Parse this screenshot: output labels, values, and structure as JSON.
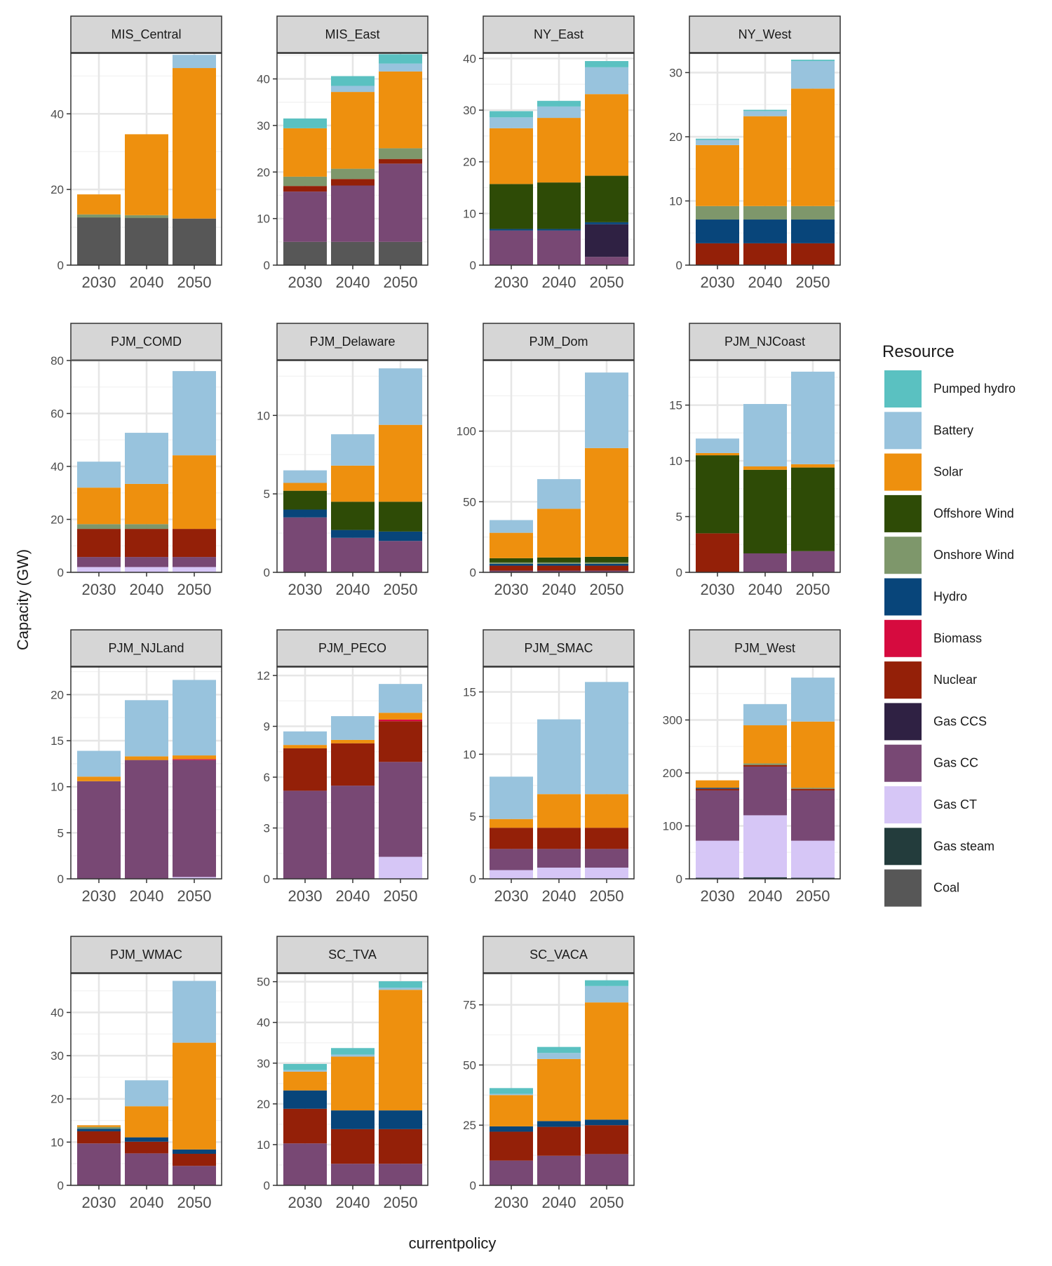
{
  "chart_data": {
    "type": "bar",
    "stacked": true,
    "xlabel": "currentpolicy",
    "ylabel": "Capacity (GW)",
    "categories": [
      "2030",
      "2040",
      "2050"
    ],
    "legend": {
      "title": "Resource",
      "position": "right",
      "items": [
        {
          "name": "Pumped hydro",
          "color": "#5ac1c1"
        },
        {
          "name": "Battery",
          "color": "#98c3dd"
        },
        {
          "name": "Solar",
          "color": "#ee900e"
        },
        {
          "name": "Offshore Wind",
          "color": "#2e4b06"
        },
        {
          "name": "Onshore Wind",
          "color": "#7e976b"
        },
        {
          "name": "Hydro",
          "color": "#08457a"
        },
        {
          "name": "Biomass",
          "color": "#d60b3f"
        },
        {
          "name": "Nuclear",
          "color": "#942008"
        },
        {
          "name": "Gas CCS",
          "color": "#2f2143"
        },
        {
          "name": "Gas CC",
          "color": "#784874"
        },
        {
          "name": "Gas CT",
          "color": "#d6c6f6"
        },
        {
          "name": "Gas steam",
          "color": "#233c3c"
        },
        {
          "name": "Coal",
          "color": "#575757"
        }
      ]
    },
    "grid": true,
    "panels": [
      {
        "title": "MIS_Central",
        "ylim": [
          0,
          56
        ],
        "yticks": [
          0,
          20,
          40
        ],
        "bars": [
          {
            "Coal": 12.6,
            "Onshore Wind": 0.8,
            "Solar": 5.3
          },
          {
            "Coal": 12.5,
            "Onshore Wind": 0.7,
            "Solar": 21.4
          },
          {
            "Coal": 12.3,
            "Solar": 39.8,
            "Battery": 3.5
          }
        ]
      },
      {
        "title": "MIS_East",
        "ylim": [
          0,
          45.5
        ],
        "yticks": [
          0,
          10,
          20,
          30,
          40
        ],
        "bars": [
          {
            "Coal": 5,
            "Gas CC": 10.8,
            "Nuclear": 1.2,
            "Onshore Wind": 2,
            "Solar": 10.4,
            "Pumped hydro": 2.1
          },
          {
            "Coal": 5,
            "Gas CC": 12.1,
            "Nuclear": 1.4,
            "Onshore Wind": 2.2,
            "Solar": 16.5,
            "Battery": 1.3,
            "Pumped hydro": 2.1
          },
          {
            "Coal": 5,
            "Gas CC": 16.8,
            "Nuclear": 1,
            "Onshore Wind": 2.3,
            "Solar": 16.5,
            "Battery": 1.7,
            "Pumped hydro": 2
          }
        ]
      },
      {
        "title": "NY_East",
        "ylim": [
          0,
          41
        ],
        "yticks": [
          0,
          10,
          20,
          30,
          40
        ],
        "bars": [
          {
            "Gas CC": 6.7,
            "Hydro": 0.3,
            "Offshore Wind": 8.7,
            "Solar": 10.8,
            "Battery": 2.1,
            "Pumped hydro": 1.2
          },
          {
            "Gas CC": 6.7,
            "Hydro": 0.3,
            "Offshore Wind": 9,
            "Solar": 12.5,
            "Battery": 2.2,
            "Pumped hydro": 1.1
          },
          {
            "Gas CC": 1.6,
            "Gas CCS": 6.3,
            "Hydro": 0.4,
            "Offshore Wind": 9,
            "Solar": 15.8,
            "Battery": 5.2,
            "Pumped hydro": 1.2
          }
        ]
      },
      {
        "title": "NY_West",
        "ylim": [
          0,
          33
        ],
        "yticks": [
          0,
          10,
          20,
          30
        ],
        "bars": [
          {
            "Nuclear": 3.4,
            "Hydro": 3.7,
            "Onshore Wind": 2.1,
            "Solar": 9.5,
            "Battery": 0.8,
            "Pumped hydro": 0.2
          },
          {
            "Nuclear": 3.4,
            "Hydro": 3.7,
            "Onshore Wind": 2.1,
            "Solar": 14,
            "Battery": 0.8,
            "Pumped hydro": 0.2
          },
          {
            "Nuclear": 3.4,
            "Hydro": 3.7,
            "Onshore Wind": 2.1,
            "Solar": 18.3,
            "Battery": 4.3,
            "Pumped hydro": 0.2
          }
        ]
      },
      {
        "title": "PJM_COMD",
        "ylim": [
          0,
          80
        ],
        "yticks": [
          0,
          20,
          40,
          60,
          80
        ],
        "bars": [
          {
            "Gas CT": 2,
            "Gas CC": 3.8,
            "Nuclear": 10.6,
            "Onshore Wind": 1.8,
            "Solar": 13.8,
            "Battery": 9.8
          },
          {
            "Gas CT": 2,
            "Gas CC": 3.8,
            "Nuclear": 10.6,
            "Onshore Wind": 1.8,
            "Solar": 15.2,
            "Battery": 19.3
          },
          {
            "Gas CT": 2,
            "Gas CC": 3.8,
            "Nuclear": 10.6,
            "Solar": 27.8,
            "Battery": 31.8
          }
        ]
      },
      {
        "title": "PJM_Delaware",
        "ylim": [
          0,
          13.5
        ],
        "yticks": [
          0,
          5,
          10
        ],
        "bars": [
          {
            "Gas CC": 3.5,
            "Hydro": 0.5,
            "Offshore Wind": 1.2,
            "Solar": 0.5,
            "Battery": 0.8
          },
          {
            "Gas CC": 2.2,
            "Hydro": 0.5,
            "Offshore Wind": 1.8,
            "Solar": 2.3,
            "Battery": 2
          },
          {
            "Gas CC": 2,
            "Hydro": 0.6,
            "Offshore Wind": 1.9,
            "Solar": 4.9,
            "Battery": 3.6
          }
        ]
      },
      {
        "title": "PJM_Dom",
        "ylim": [
          0,
          150
        ],
        "yticks": [
          0,
          50,
          100
        ],
        "bars": [
          {
            "Nuclear": 3.5,
            "Gas CC": 1.2,
            "Hydro": 1.3,
            "Onshore Wind": 1,
            "Offshore Wind": 3,
            "Solar": 18,
            "Battery": 9
          },
          {
            "Nuclear": 3.5,
            "Gas CC": 1.2,
            "Hydro": 1.3,
            "Onshore Wind": 1,
            "Offshore Wind": 3.5,
            "Solar": 34.5,
            "Battery": 21
          },
          {
            "Nuclear": 3.5,
            "Gas CC": 1.2,
            "Hydro": 1.3,
            "Onshore Wind": 1,
            "Offshore Wind": 4,
            "Solar": 77,
            "Battery": 53.5
          }
        ]
      },
      {
        "title": "PJM_NJCoast",
        "ylim": [
          0,
          19
        ],
        "yticks": [
          0,
          5,
          10,
          15
        ],
        "bars": [
          {
            "Nuclear": 3.5,
            "Offshore Wind": 7,
            "Solar": 0.2,
            "Battery": 1.3
          },
          {
            "Gas CC": 1.7,
            "Offshore Wind": 7.5,
            "Solar": 0.3,
            "Battery": 5.6
          },
          {
            "Gas CC": 1.9,
            "Offshore Wind": 7.5,
            "Solar": 0.3,
            "Battery": 8.3
          }
        ]
      },
      {
        "title": "PJM_NJLand",
        "ylim": [
          0,
          23
        ],
        "yticks": [
          0,
          5,
          10,
          15,
          20
        ],
        "bars": [
          {
            "Gas CC": 10.6,
            "Solar": 0.5,
            "Battery": 2.8
          },
          {
            "Gas CC": 12.9,
            "Solar": 0.4,
            "Battery": 6.1
          },
          {
            "Gas CT": 0.2,
            "Gas CC": 12.7,
            "Biomass": 0.1,
            "Solar": 0.4,
            "Battery": 8.2
          }
        ]
      },
      {
        "title": "PJM_PECO",
        "ylim": [
          0,
          12.5
        ],
        "yticks": [
          0,
          3,
          6,
          9,
          12
        ],
        "bars": [
          {
            "Gas CC": 5.2,
            "Nuclear": 2.5,
            "Solar": 0.2,
            "Battery": 0.8
          },
          {
            "Gas CC": 5.5,
            "Nuclear": 2.5,
            "Solar": 0.2,
            "Battery": 1.4
          },
          {
            "Gas CT": 1.3,
            "Gas CC": 5.6,
            "Nuclear": 2.4,
            "Biomass": 0.1,
            "Solar": 0.4,
            "Battery": 1.7
          }
        ]
      },
      {
        "title": "PJM_SMAC",
        "ylim": [
          0,
          17
        ],
        "yticks": [
          0,
          5,
          10,
          15
        ],
        "bars": [
          {
            "Gas CT": 0.7,
            "Gas CC": 1.7,
            "Nuclear": 1.7,
            "Solar": 0.7,
            "Battery": 3.4
          },
          {
            "Gas CT": 0.9,
            "Gas CC": 1.5,
            "Nuclear": 1.7,
            "Solar": 2.7,
            "Battery": 6
          },
          {
            "Gas CT": 0.9,
            "Gas CC": 1.5,
            "Nuclear": 1.7,
            "Solar": 2.7,
            "Battery": 9
          }
        ]
      },
      {
        "title": "PJM_West",
        "ylim": [
          0,
          400
        ],
        "yticks": [
          0,
          100,
          200,
          300
        ],
        "bars": [
          {
            "Gas CT": 70,
            "Gas CC": 95,
            "Gas steam": 2,
            "Nuclear": 3,
            "Hydro": 2,
            "Solar": 14
          },
          {
            "Gas CT": 117,
            "Gas CC": 92,
            "Gas steam": 3,
            "Nuclear": 3,
            "Onshore Wind": 3,
            "Solar": 72,
            "Battery": 40
          },
          {
            "Gas CT": 70,
            "Gas CC": 95,
            "Gas steam": 2,
            "Nuclear": 3,
            "Onshore Wind": 2,
            "Solar": 125,
            "Battery": 83
          }
        ]
      },
      {
        "title": "PJM_WMAC",
        "ylim": [
          0,
          49
        ],
        "yticks": [
          0,
          10,
          20,
          30,
          40
        ],
        "bars": [
          {
            "Gas CC": 9.7,
            "Nuclear": 2.8,
            "Hydro": 0.6,
            "Onshore Wind": 0.4,
            "Solar": 0.4
          },
          {
            "Gas CC": 7.4,
            "Nuclear": 2.7,
            "Hydro": 1,
            "Solar": 7.2,
            "Battery": 6
          },
          {
            "Gas CC": 4.5,
            "Nuclear": 2.8,
            "Hydro": 1,
            "Solar": 24.7,
            "Battery": 14.3
          }
        ]
      },
      {
        "title": "SC_TVA",
        "ylim": [
          0,
          52
        ],
        "yticks": [
          0,
          10,
          20,
          30,
          40,
          50
        ],
        "bars": [
          {
            "Gas CC": 10.3,
            "Nuclear": 8.5,
            "Hydro": 4.5,
            "Solar": 4.6,
            "Battery": 0.4,
            "Pumped hydro": 1.5
          },
          {
            "Gas CC": 5.3,
            "Nuclear": 8.5,
            "Hydro": 4.6,
            "Solar": 13.2,
            "Battery": 0.5,
            "Pumped hydro": 1.6
          },
          {
            "Gas CC": 5.3,
            "Nuclear": 8.5,
            "Hydro": 4.6,
            "Solar": 29.6,
            "Battery": 0.5,
            "Pumped hydro": 1.6
          }
        ]
      },
      {
        "title": "SC_VACA",
        "ylim": [
          0,
          88
        ],
        "yticks": [
          0,
          25,
          50,
          75
        ],
        "bars": [
          {
            "Gas CC": 10.3,
            "Nuclear": 12,
            "Hydro": 2.2,
            "Solar": 13,
            "Battery": 0.5,
            "Pumped hydro": 2.4
          },
          {
            "Gas CC": 12.3,
            "Nuclear": 12,
            "Hydro": 2.4,
            "Solar": 25.8,
            "Battery": 2.5,
            "Pumped hydro": 2.5
          },
          {
            "Gas CC": 13,
            "Nuclear": 12,
            "Hydro": 2.3,
            "Solar": 48.7,
            "Battery": 6.8,
            "Pumped hydro": 2.4
          }
        ]
      }
    ]
  }
}
